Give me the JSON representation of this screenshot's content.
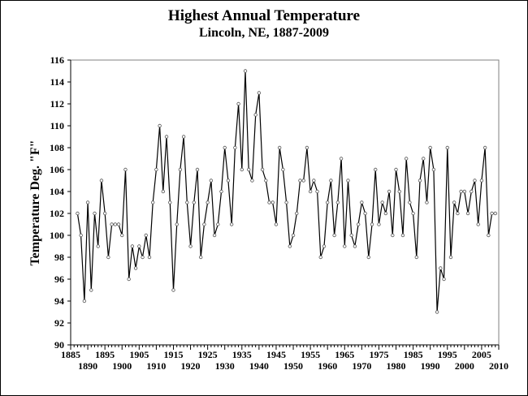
{
  "chart_data": {
    "type": "line",
    "title": "Highest Annual Temperature",
    "subtitle": "Lincoln, NE, 1887-2009",
    "xlabel": "",
    "ylabel": "Temperature Deg. \"F\"",
    "xlim": [
      1885,
      2010
    ],
    "ylim": [
      90,
      116
    ],
    "y_ticks": [
      90,
      92,
      94,
      96,
      98,
      100,
      102,
      104,
      106,
      108,
      110,
      112,
      114,
      116
    ],
    "x_ticks_top": [
      1885,
      1895,
      1905,
      1915,
      1925,
      1935,
      1945,
      1955,
      1965,
      1975,
      1985,
      1995,
      2005
    ],
    "x_ticks_bottom": [
      1890,
      1900,
      1910,
      1920,
      1930,
      1940,
      1950,
      1960,
      1970,
      1980,
      1990,
      2000,
      2010
    ],
    "grid": false,
    "series": [
      {
        "color": "#000000",
        "x": [
          1887,
          1888,
          1889,
          1890,
          1891,
          1892,
          1893,
          1894,
          1895,
          1896,
          1897,
          1898,
          1899,
          1900,
          1901,
          1902,
          1903,
          1904,
          1905,
          1906,
          1907,
          1908,
          1909,
          1910,
          1911,
          1912,
          1913,
          1914,
          1915,
          1916,
          1917,
          1918,
          1919,
          1920,
          1921,
          1922,
          1923,
          1924,
          1925,
          1926,
          1927,
          1928,
          1929,
          1930,
          1931,
          1932,
          1933,
          1934,
          1935,
          1936,
          1937,
          1938,
          1939,
          1940,
          1941,
          1942,
          1943,
          1944,
          1945,
          1946,
          1947,
          1948,
          1949,
          1950,
          1951,
          1952,
          1953,
          1954,
          1955,
          1956,
          1957,
          1958,
          1959,
          1960,
          1961,
          1962,
          1963,
          1964,
          1965,
          1966,
          1967,
          1968,
          1969,
          1970,
          1971,
          1972,
          1973,
          1974,
          1975,
          1976,
          1977,
          1978,
          1979,
          1980,
          1981,
          1982,
          1983,
          1984,
          1985,
          1986,
          1987,
          1988,
          1989,
          1990,
          1991,
          1992,
          1993,
          1994,
          1995,
          1996,
          1997,
          1998,
          1999,
          2000,
          2001,
          2002,
          2003,
          2004,
          2005,
          2006,
          2007,
          2008,
          2009
        ],
        "values": [
          102,
          100,
          94,
          103,
          95,
          102,
          99,
          105,
          102,
          98,
          101,
          101,
          101,
          100,
          106,
          96,
          99,
          97,
          99,
          98,
          100,
          98,
          103,
          106,
          110,
          104,
          109,
          103,
          95,
          101,
          106,
          109,
          103,
          99,
          103,
          106,
          98,
          101,
          103,
          105,
          100,
          101,
          104,
          108,
          105,
          101,
          108,
          112,
          106,
          115,
          106,
          105,
          111,
          113,
          106,
          105,
          103,
          103,
          101,
          108,
          106,
          103,
          99,
          100,
          102,
          105,
          105,
          108,
          104,
          105,
          104,
          98,
          99,
          103,
          105,
          100,
          103,
          107,
          99,
          105,
          100,
          99,
          101,
          103,
          102,
          98,
          101,
          106,
          101,
          103,
          102,
          104,
          100,
          106,
          104,
          100,
          107,
          103,
          102,
          98,
          105,
          107,
          103,
          108,
          106,
          93,
          97,
          96,
          108,
          98,
          103,
          102,
          104,
          104,
          102,
          104,
          105,
          101,
          105,
          108,
          100,
          102,
          102
        ]
      }
    ]
  }
}
